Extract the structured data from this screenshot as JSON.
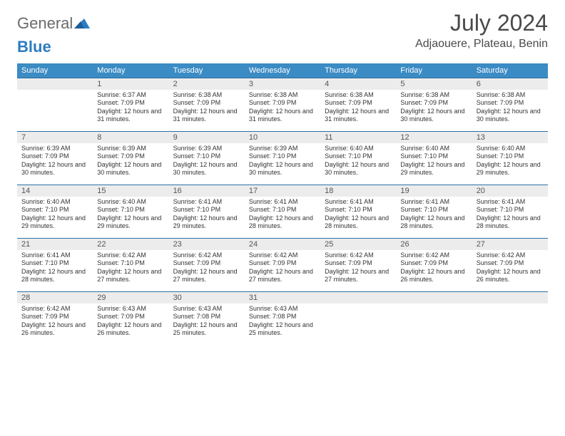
{
  "logo": {
    "text1": "General",
    "text2": "Blue"
  },
  "title": "July 2024",
  "subtitle": "Adjaouere, Plateau, Benin",
  "colors": {
    "header_bg": "#3b8bc4",
    "header_text": "#ffffff",
    "daynum_bg": "#ececec",
    "border_top": "#2d6fa3",
    "logo_gray": "#6b6b6b",
    "logo_blue": "#2d7cc0",
    "text": "#333333",
    "bg": "#ffffff"
  },
  "weekdays": [
    "Sunday",
    "Monday",
    "Tuesday",
    "Wednesday",
    "Thursday",
    "Friday",
    "Saturday"
  ],
  "layout": {
    "first_day_col": 1,
    "days_in_month": 31
  },
  "days": {
    "1": {
      "sunrise": "6:37 AM",
      "sunset": "7:09 PM",
      "daylight": "12 hours and 31 minutes."
    },
    "2": {
      "sunrise": "6:38 AM",
      "sunset": "7:09 PM",
      "daylight": "12 hours and 31 minutes."
    },
    "3": {
      "sunrise": "6:38 AM",
      "sunset": "7:09 PM",
      "daylight": "12 hours and 31 minutes."
    },
    "4": {
      "sunrise": "6:38 AM",
      "sunset": "7:09 PM",
      "daylight": "12 hours and 31 minutes."
    },
    "5": {
      "sunrise": "6:38 AM",
      "sunset": "7:09 PM",
      "daylight": "12 hours and 30 minutes."
    },
    "6": {
      "sunrise": "6:38 AM",
      "sunset": "7:09 PM",
      "daylight": "12 hours and 30 minutes."
    },
    "7": {
      "sunrise": "6:39 AM",
      "sunset": "7:09 PM",
      "daylight": "12 hours and 30 minutes."
    },
    "8": {
      "sunrise": "6:39 AM",
      "sunset": "7:09 PM",
      "daylight": "12 hours and 30 minutes."
    },
    "9": {
      "sunrise": "6:39 AM",
      "sunset": "7:10 PM",
      "daylight": "12 hours and 30 minutes."
    },
    "10": {
      "sunrise": "6:39 AM",
      "sunset": "7:10 PM",
      "daylight": "12 hours and 30 minutes."
    },
    "11": {
      "sunrise": "6:40 AM",
      "sunset": "7:10 PM",
      "daylight": "12 hours and 30 minutes."
    },
    "12": {
      "sunrise": "6:40 AM",
      "sunset": "7:10 PM",
      "daylight": "12 hours and 29 minutes."
    },
    "13": {
      "sunrise": "6:40 AM",
      "sunset": "7:10 PM",
      "daylight": "12 hours and 29 minutes."
    },
    "14": {
      "sunrise": "6:40 AM",
      "sunset": "7:10 PM",
      "daylight": "12 hours and 29 minutes."
    },
    "15": {
      "sunrise": "6:40 AM",
      "sunset": "7:10 PM",
      "daylight": "12 hours and 29 minutes."
    },
    "16": {
      "sunrise": "6:41 AM",
      "sunset": "7:10 PM",
      "daylight": "12 hours and 29 minutes."
    },
    "17": {
      "sunrise": "6:41 AM",
      "sunset": "7:10 PM",
      "daylight": "12 hours and 28 minutes."
    },
    "18": {
      "sunrise": "6:41 AM",
      "sunset": "7:10 PM",
      "daylight": "12 hours and 28 minutes."
    },
    "19": {
      "sunrise": "6:41 AM",
      "sunset": "7:10 PM",
      "daylight": "12 hours and 28 minutes."
    },
    "20": {
      "sunrise": "6:41 AM",
      "sunset": "7:10 PM",
      "daylight": "12 hours and 28 minutes."
    },
    "21": {
      "sunrise": "6:41 AM",
      "sunset": "7:10 PM",
      "daylight": "12 hours and 28 minutes."
    },
    "22": {
      "sunrise": "6:42 AM",
      "sunset": "7:10 PM",
      "daylight": "12 hours and 27 minutes."
    },
    "23": {
      "sunrise": "6:42 AM",
      "sunset": "7:09 PM",
      "daylight": "12 hours and 27 minutes."
    },
    "24": {
      "sunrise": "6:42 AM",
      "sunset": "7:09 PM",
      "daylight": "12 hours and 27 minutes."
    },
    "25": {
      "sunrise": "6:42 AM",
      "sunset": "7:09 PM",
      "daylight": "12 hours and 27 minutes."
    },
    "26": {
      "sunrise": "6:42 AM",
      "sunset": "7:09 PM",
      "daylight": "12 hours and 26 minutes."
    },
    "27": {
      "sunrise": "6:42 AM",
      "sunset": "7:09 PM",
      "daylight": "12 hours and 26 minutes."
    },
    "28": {
      "sunrise": "6:42 AM",
      "sunset": "7:09 PM",
      "daylight": "12 hours and 26 minutes."
    },
    "29": {
      "sunrise": "6:43 AM",
      "sunset": "7:09 PM",
      "daylight": "12 hours and 26 minutes."
    },
    "30": {
      "sunrise": "6:43 AM",
      "sunset": "7:08 PM",
      "daylight": "12 hours and 25 minutes."
    },
    "31": {
      "sunrise": "6:43 AM",
      "sunset": "7:08 PM",
      "daylight": "12 hours and 25 minutes."
    }
  },
  "labels": {
    "sunrise": "Sunrise: ",
    "sunset": "Sunset: ",
    "daylight": "Daylight: "
  }
}
